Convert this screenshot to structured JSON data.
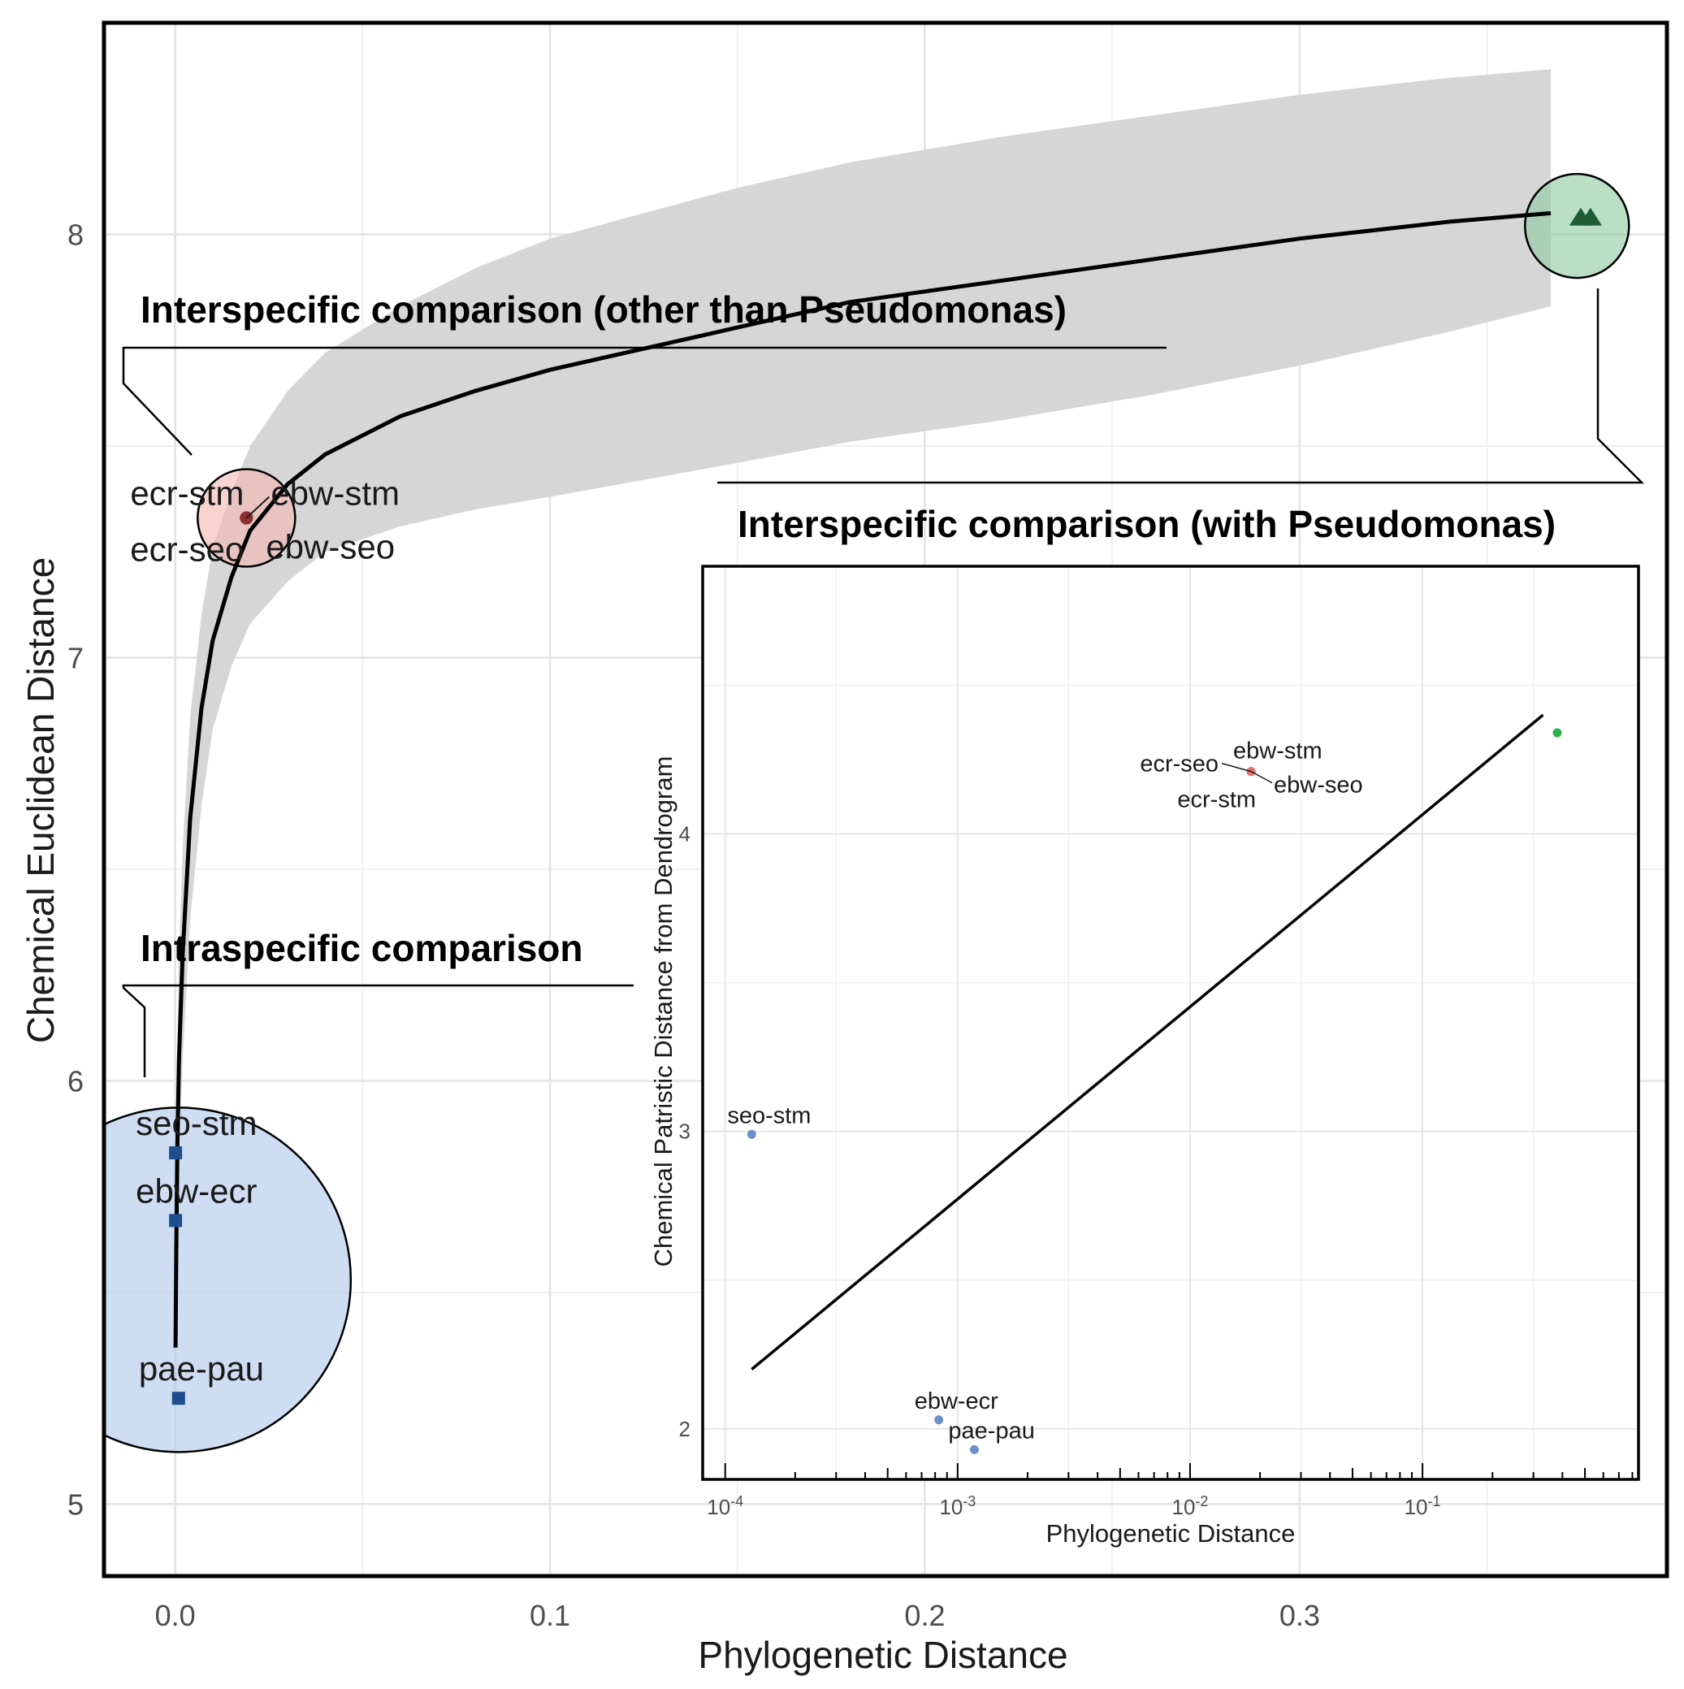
{
  "chart_data": [
    {
      "type": "scatter",
      "title": "",
      "xlabel": "Phylogenetic Distance",
      "ylabel": "Chemical Euclidean Distance",
      "xlim": [
        -0.019,
        0.398
      ],
      "ylim": [
        4.83,
        8.5
      ],
      "x_ticks": [
        {
          "value": 0.0,
          "label": "0.0"
        },
        {
          "value": 0.1,
          "label": "0.1"
        },
        {
          "value": 0.2,
          "label": "0.2"
        },
        {
          "value": 0.3,
          "label": "0.3"
        }
      ],
      "y_ticks": [
        {
          "value": 5,
          "label": "5"
        },
        {
          "value": 6,
          "label": "6"
        },
        {
          "value": 7,
          "label": "7"
        },
        {
          "value": 8,
          "label": "8"
        }
      ],
      "grid": true,
      "groups": [
        {
          "group": "intraspecific",
          "color": "#1f4e8c",
          "highlight_color": "#b0c8ea",
          "marker": "square",
          "points": [
            {
              "x": 0.0001,
              "y": 5.83,
              "label": "seo-stm"
            },
            {
              "x": 0.0001,
              "y": 5.67,
              "label": "ebw-ecr"
            },
            {
              "x": 0.0009,
              "y": 5.25,
              "label": "pae-pau"
            }
          ]
        },
        {
          "group": "interspecific (other than Pseudomonas)",
          "color": "#8b2e2e",
          "highlight_color": "#f3b8b3",
          "marker": "circle",
          "points": [
            {
              "x": 0.019,
              "y": 7.33,
              "label": "ecr-stm"
            },
            {
              "x": 0.019,
              "y": 7.33,
              "label": "ebw-stm"
            },
            {
              "x": 0.019,
              "y": 7.33,
              "label": "ecr-seo"
            },
            {
              "x": 0.019,
              "y": 7.33,
              "label": "ebw-seo"
            }
          ]
        },
        {
          "group": "interspecific (with Pseudomonas)",
          "color": "#1e5c33",
          "highlight_color": "#8fcc9f",
          "marker": "triangle",
          "points": [
            {
              "x": 0.375,
              "y": 8.04,
              "label": ""
            }
          ]
        }
      ],
      "fit": {
        "type": "line",
        "color": "#000000",
        "points": [
          [
            0.0001,
            5.37
          ],
          [
            0.0003,
            5.6
          ],
          [
            0.0006,
            5.85
          ],
          [
            0.001,
            6.05
          ],
          [
            0.002,
            6.3
          ],
          [
            0.004,
            6.62
          ],
          [
            0.007,
            6.88
          ],
          [
            0.01,
            7.04
          ],
          [
            0.015,
            7.19
          ],
          [
            0.02,
            7.3
          ],
          [
            0.03,
            7.41
          ],
          [
            0.04,
            7.48
          ],
          [
            0.06,
            7.57
          ],
          [
            0.08,
            7.63
          ],
          [
            0.1,
            7.68
          ],
          [
            0.125,
            7.73
          ],
          [
            0.15,
            7.78
          ],
          [
            0.18,
            7.84
          ],
          [
            0.22,
            7.89
          ],
          [
            0.26,
            7.94
          ],
          [
            0.3,
            7.99
          ],
          [
            0.34,
            8.03
          ],
          [
            0.367,
            8.05
          ]
        ],
        "ribbon_color": "#d6d6d6",
        "ribbon": [
          [
            0.0001,
            5.2,
            5.55
          ],
          [
            0.0003,
            5.38,
            5.83
          ],
          [
            0.0006,
            5.6,
            6.1
          ],
          [
            0.001,
            5.82,
            6.3
          ],
          [
            0.002,
            6.05,
            6.55
          ],
          [
            0.004,
            6.38,
            6.86
          ],
          [
            0.007,
            6.65,
            7.1
          ],
          [
            0.01,
            6.83,
            7.26
          ],
          [
            0.015,
            6.98,
            7.39
          ],
          [
            0.02,
            7.08,
            7.5
          ],
          [
            0.03,
            7.18,
            7.63
          ],
          [
            0.04,
            7.25,
            7.72
          ],
          [
            0.06,
            7.31,
            7.83
          ],
          [
            0.08,
            7.35,
            7.92
          ],
          [
            0.1,
            7.38,
            7.99
          ],
          [
            0.125,
            7.42,
            8.05
          ],
          [
            0.15,
            7.46,
            8.11
          ],
          [
            0.18,
            7.51,
            8.17
          ],
          [
            0.22,
            7.56,
            8.23
          ],
          [
            0.26,
            7.62,
            8.28
          ],
          [
            0.3,
            7.69,
            8.33
          ],
          [
            0.34,
            7.77,
            8.37
          ],
          [
            0.367,
            7.83,
            8.39
          ]
        ]
      },
      "annotations": [
        "Interspecific comparison (other than Pseudomonas)",
        "Intraspecific comparison",
        "Interspecific comparison (with Pseudomonas)"
      ]
    },
    {
      "type": "scatter",
      "title": "Interspecific comparison (with Pseudomonas)",
      "xlabel": "Phylogenetic Distance",
      "ylabel": "Chemical Patristic Distance from Dendrogram",
      "x_scale": "log10",
      "xlim": [
        8e-05,
        0.85
      ],
      "ylim": [
        1.83,
        4.9
      ],
      "x_ticks": [
        {
          "value": 0.0001,
          "base": "10",
          "exp": "-4"
        },
        {
          "value": 0.001,
          "base": "10",
          "exp": "-3"
        },
        {
          "value": 0.01,
          "base": "10",
          "exp": "-2"
        },
        {
          "value": 0.1,
          "base": "10",
          "exp": "-1"
        }
      ],
      "y_ticks": [
        {
          "value": 2,
          "label": "2"
        },
        {
          "value": 3,
          "label": "3"
        },
        {
          "value": 4,
          "label": "4"
        }
      ],
      "grid": true,
      "points": [
        {
          "x": 0.00013,
          "y": 2.99,
          "label": "seo-stm",
          "color": "#6b8fc9"
        },
        {
          "x": 0.00083,
          "y": 2.03,
          "label": "ebw-ecr",
          "color": "#6b8fc9"
        },
        {
          "x": 0.00118,
          "y": 1.93,
          "label": "pae-pau",
          "color": "#6b8fc9"
        },
        {
          "x": 0.0183,
          "y": 4.21,
          "label": "ecr-seo",
          "color": "#e8746e"
        },
        {
          "x": 0.0183,
          "y": 4.21,
          "label": "ebw-stm",
          "color": "#e8746e"
        },
        {
          "x": 0.0183,
          "y": 4.21,
          "label": "ebw-seo",
          "color": "#e8746e"
        },
        {
          "x": 0.0183,
          "y": 4.21,
          "label": "ecr-stm",
          "color": "#e8746e"
        },
        {
          "x": 0.38,
          "y": 4.34,
          "label": "",
          "color": "#2db34a"
        }
      ],
      "fit": {
        "type": "line",
        "color": "#000000",
        "from": [
          0.00013,
          2.2
        ],
        "to": [
          0.33,
          4.4
        ]
      }
    }
  ]
}
